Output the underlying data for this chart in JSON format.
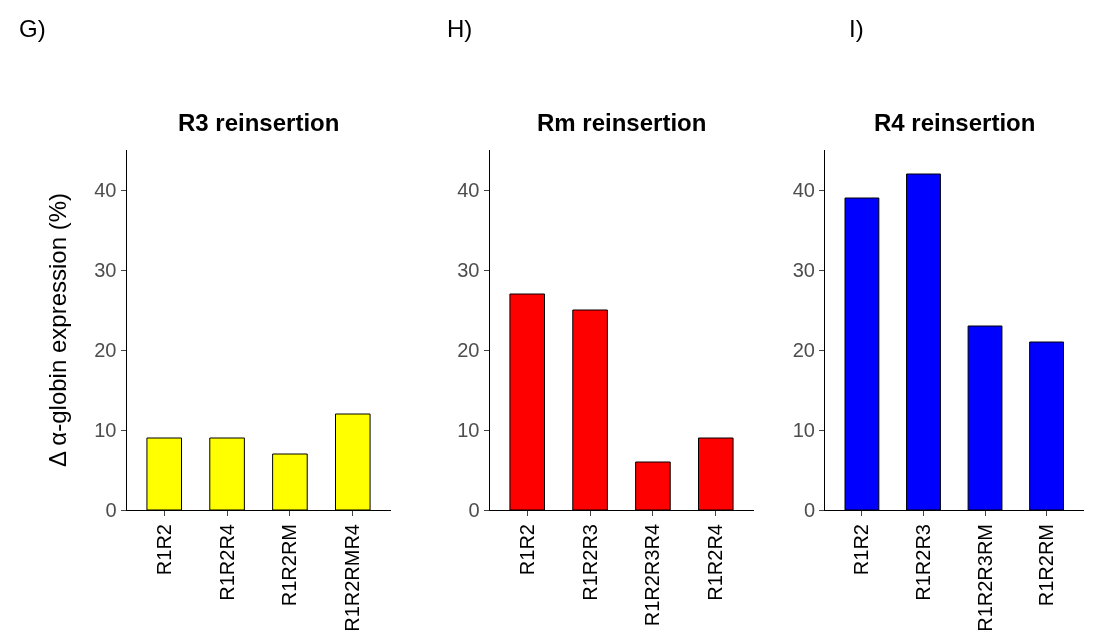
{
  "chart_data": [
    {
      "type": "bar",
      "title": "R3 reinsertion",
      "ylabel": "Δ α-globin expression (%)",
      "annotations": [
        "G)"
      ],
      "categories": [
        "R1R2",
        "R1R2R4",
        "R1R2RM",
        "R1R2RMR4"
      ],
      "values": [
        9,
        9,
        7,
        12
      ],
      "color": "#ffff00",
      "ylim": [
        0,
        45
      ],
      "yticks": [
        0,
        10,
        20,
        30,
        40
      ]
    },
    {
      "type": "bar",
      "title": "Rm reinsertion",
      "annotations": [
        "H)"
      ],
      "categories": [
        "R1R2",
        "R1R2R3",
        "R1R2R3R4",
        "R1R2R4"
      ],
      "values": [
        27,
        25,
        6,
        9
      ],
      "color": "#ff0000",
      "ylim": [
        0,
        45
      ],
      "yticks": [
        0,
        10,
        20,
        30,
        40
      ]
    },
    {
      "type": "bar",
      "title": "R4 reinsertion",
      "annotations": [
        "I)"
      ],
      "categories": [
        "R1R2",
        "R1R2R3",
        "R1R2R3RM",
        "R1R2RM"
      ],
      "values": [
        39,
        42,
        23,
        21
      ],
      "color": "#0000ff",
      "ylim": [
        0,
        45
      ],
      "yticks": [
        0,
        10,
        20,
        30,
        40
      ]
    }
  ]
}
